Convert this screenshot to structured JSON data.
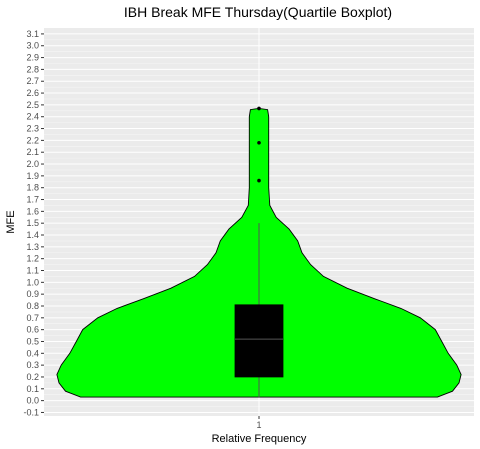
{
  "chart_data": {
    "type": "violin",
    "title": "IBH Break MFE Thursday(Quartile Boxplot)",
    "xlabel": "Relative Frequency",
    "ylabel": "MFE",
    "categories": [
      "1"
    ],
    "y_ticks": [
      "-0.1",
      "0.0",
      "0.1",
      "0.2",
      "0.3",
      "0.4",
      "0.5",
      "0.6",
      "0.7",
      "0.8",
      "0.9",
      "1.0",
      "1.1",
      "1.2",
      "1.3",
      "1.4",
      "1.5",
      "1.6",
      "1.7",
      "1.8",
      "1.9",
      "2.0",
      "2.1",
      "2.2",
      "2.3",
      "2.4",
      "2.5",
      "2.6",
      "2.7",
      "2.8",
      "2.9",
      "3.0",
      "3.1"
    ],
    "ylim": [
      -0.13,
      3.15
    ],
    "grid": true,
    "fill_color": "#00ff00",
    "box_color": "#000000",
    "violin_profile": [
      {
        "y": 0.03,
        "w": 0.83
      },
      {
        "y": 0.08,
        "w": 0.9
      },
      {
        "y": 0.15,
        "w": 0.93
      },
      {
        "y": 0.22,
        "w": 0.94
      },
      {
        "y": 0.3,
        "w": 0.92
      },
      {
        "y": 0.4,
        "w": 0.88
      },
      {
        "y": 0.5,
        "w": 0.85
      },
      {
        "y": 0.6,
        "w": 0.82
      },
      {
        "y": 0.7,
        "w": 0.75
      },
      {
        "y": 0.78,
        "w": 0.66
      },
      {
        "y": 0.86,
        "w": 0.54
      },
      {
        "y": 0.95,
        "w": 0.41
      },
      {
        "y": 1.05,
        "w": 0.3
      },
      {
        "y": 1.15,
        "w": 0.24
      },
      {
        "y": 1.25,
        "w": 0.2
      },
      {
        "y": 1.35,
        "w": 0.18
      },
      {
        "y": 1.45,
        "w": 0.14
      },
      {
        "y": 1.55,
        "w": 0.08
      },
      {
        "y": 1.65,
        "w": 0.05
      },
      {
        "y": 1.8,
        "w": 0.045
      },
      {
        "y": 2.0,
        "w": 0.045
      },
      {
        "y": 2.2,
        "w": 0.045
      },
      {
        "y": 2.4,
        "w": 0.045
      },
      {
        "y": 2.46,
        "w": 0.04
      },
      {
        "y": 2.47,
        "w": 0.0
      }
    ],
    "box": {
      "q1": 0.2,
      "median": 0.52,
      "q3": 0.81,
      "whisker_low": 0.03,
      "whisker_high": 1.5
    },
    "outliers": [
      1.86,
      2.18,
      2.47
    ]
  }
}
